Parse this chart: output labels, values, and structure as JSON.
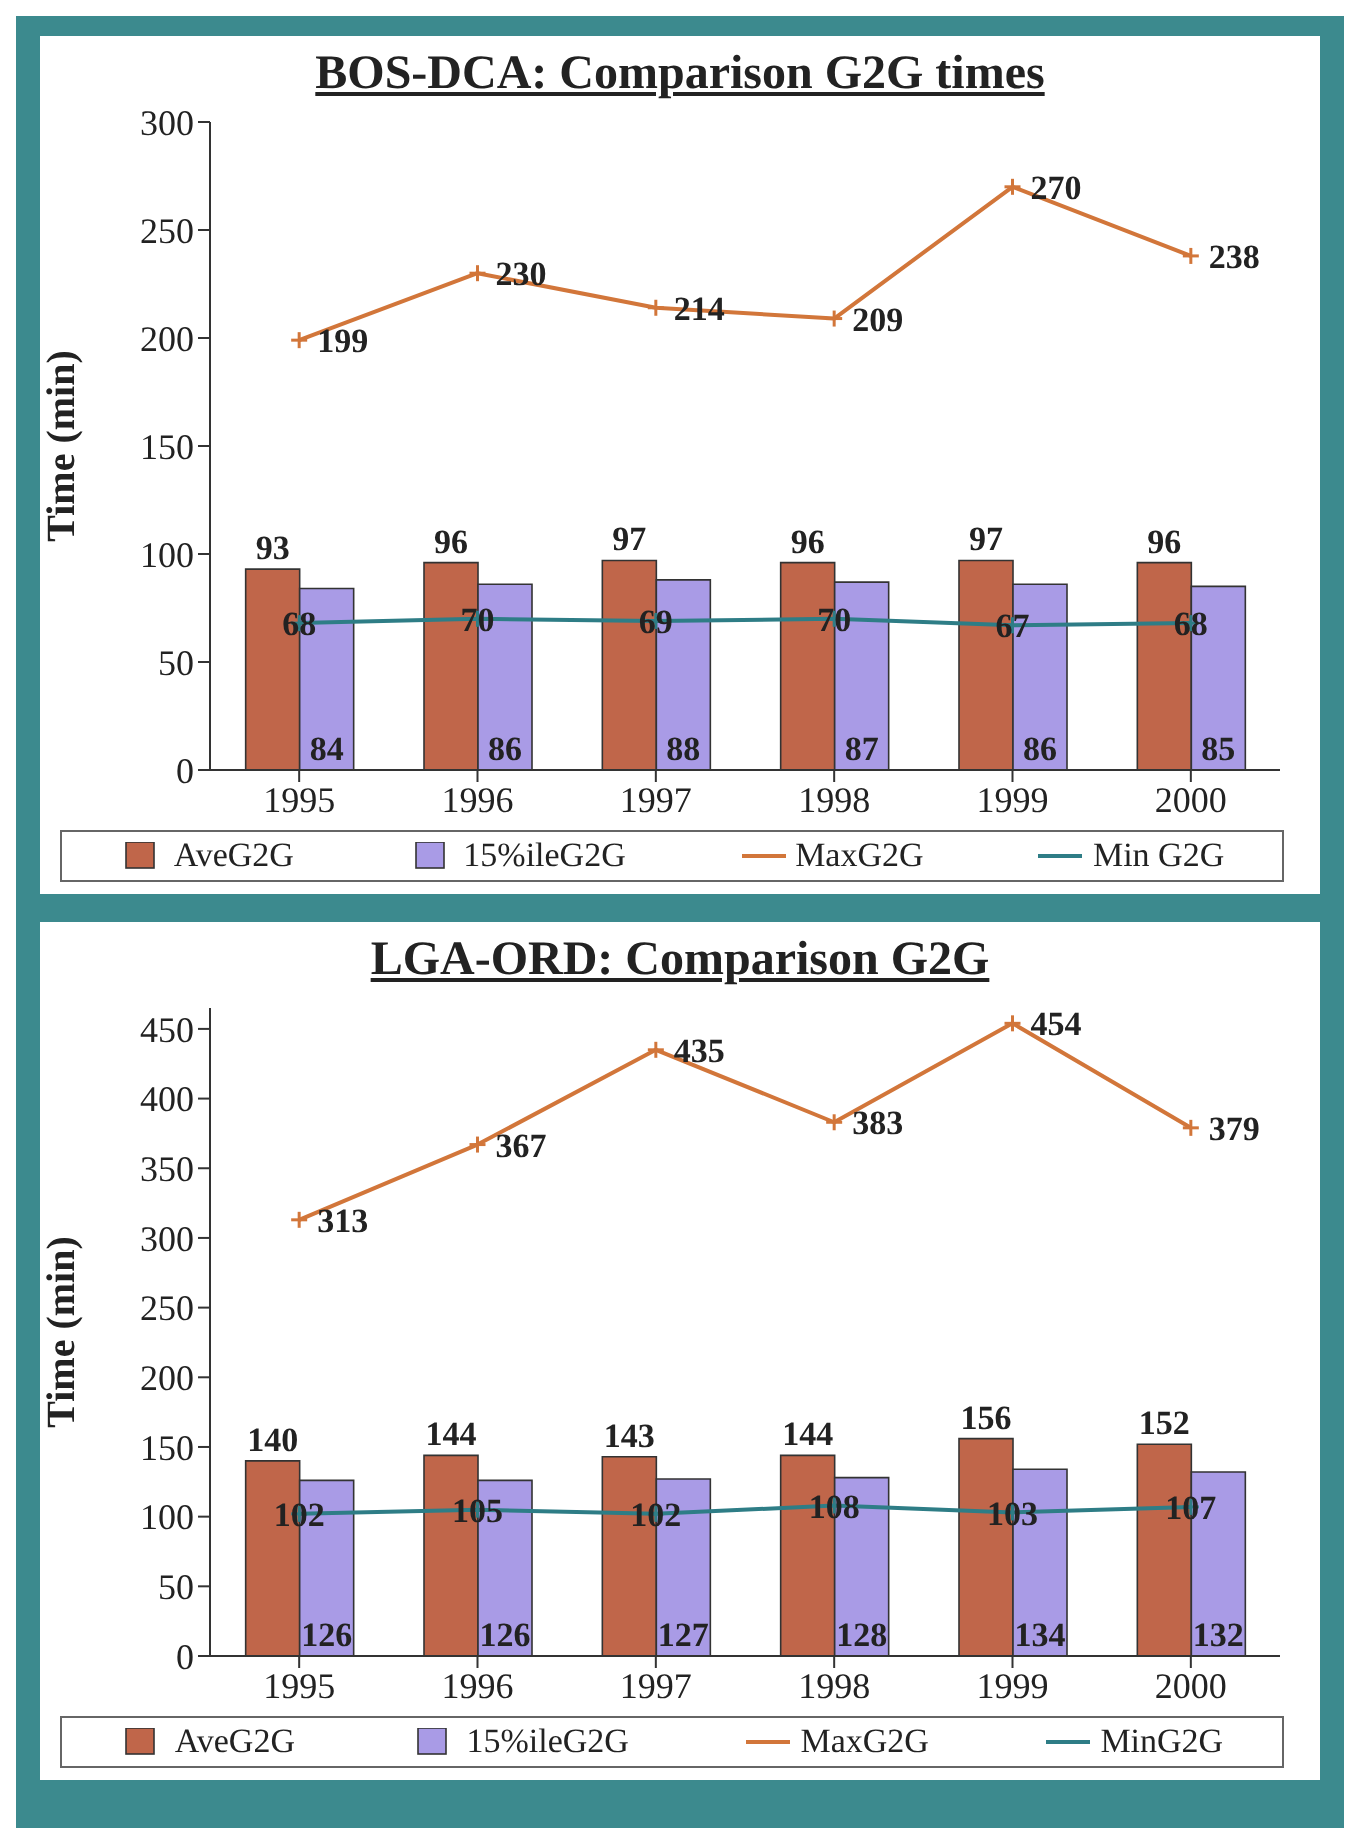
{
  "chart_data": [
    {
      "type": "bar",
      "title": "BOS-DCA: Comparison G2G times",
      "ylabel": "Time (min)",
      "categories": [
        "1995",
        "1996",
        "1997",
        "1998",
        "1999",
        "2000"
      ],
      "series": [
        {
          "name": "AveG2G",
          "color": "#c0664a",
          "values": [
            93,
            96,
            97,
            96,
            97,
            96
          ]
        },
        {
          "name": "15%ileG2G",
          "color": "#a99be6",
          "values": [
            84,
            86,
            88,
            87,
            86,
            85
          ]
        },
        {
          "name": "MaxG2G",
          "type": "line",
          "color": "#d2763a",
          "values": [
            199,
            230,
            214,
            209,
            270,
            238
          ]
        },
        {
          "name": "Min G2G",
          "type": "line",
          "color": "#2e7d86",
          "values": [
            68,
            70,
            69,
            70,
            67,
            68
          ]
        }
      ],
      "ylim": [
        0,
        300
      ],
      "yticks": [
        0,
        50,
        100,
        150,
        200,
        250,
        300
      ],
      "grid": false,
      "legend": "bottom",
      "data_labels": true,
      "marker": "cross"
    },
    {
      "type": "bar",
      "title": "LGA-ORD: Comparison G2G",
      "ylabel": "Time (min)",
      "categories": [
        "1995",
        "1996",
        "1997",
        "1998",
        "1999",
        "2000"
      ],
      "series": [
        {
          "name": "AveG2G",
          "color": "#c0664a",
          "values": [
            140,
            144,
            143,
            144,
            156,
            152
          ]
        },
        {
          "name": "15%ileG2G",
          "color": "#a99be6",
          "values": [
            126,
            126,
            127,
            128,
            134,
            132
          ]
        },
        {
          "name": "MaxG2G",
          "type": "line",
          "color": "#d2763a",
          "values": [
            313,
            367,
            435,
            383,
            454,
            379
          ]
        },
        {
          "name": "MinG2G",
          "type": "line",
          "color": "#2e7d86",
          "values": [
            102,
            105,
            102,
            108,
            103,
            107
          ]
        }
      ],
      "ylim": [
        0,
        465
      ],
      "yticks": [
        0,
        50,
        100,
        150,
        200,
        250,
        300,
        350,
        400,
        450
      ],
      "grid": false,
      "legend": "bottom",
      "data_labels": true,
      "marker": "cross"
    }
  ]
}
